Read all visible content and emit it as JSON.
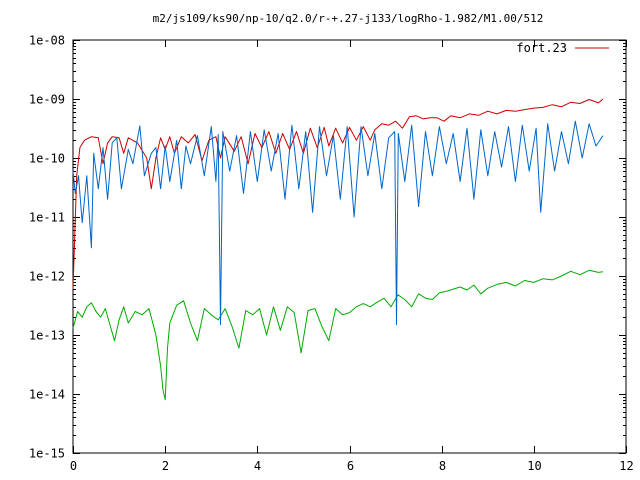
{
  "chart_data": {
    "type": "line",
    "title": "m2/js109/ks90/np-10/q2.0/r-+.27-j133/logRho-1.982/M1.00/512",
    "xlabel": "",
    "ylabel": "",
    "xlim": [
      0,
      12
    ],
    "ylim": [
      1e-15,
      1e-08
    ],
    "yscale": "log",
    "x_ticks": [
      0,
      2,
      4,
      6,
      8,
      10,
      12
    ],
    "x_tick_labels": [
      "0",
      "2",
      "4",
      "6",
      "8",
      "10",
      "12"
    ],
    "y_ticks": [
      1e-15,
      1e-14,
      1e-13,
      1e-12,
      1e-11,
      1e-10,
      1e-09,
      1e-08
    ],
    "y_tick_labels": [
      "1e-15",
      "1e-14",
      "1e-13",
      "1e-12",
      "1e-11",
      "1e-10",
      "1e-09",
      "1e-08"
    ],
    "grid": false,
    "legend_position": "top-right",
    "series": [
      {
        "name": "fort.23",
        "color": "#cc0000",
        "x": [
          0.0,
          0.08,
          0.15,
          0.25,
          0.4,
          0.55,
          0.65,
          0.75,
          0.85,
          1.0,
          1.1,
          1.2,
          1.4,
          1.6,
          1.7,
          1.8,
          1.9,
          2.0,
          2.1,
          2.2,
          2.35,
          2.5,
          2.65,
          2.8,
          2.95,
          3.1,
          3.2,
          3.3,
          3.5,
          3.65,
          3.8,
          3.95,
          4.1,
          4.25,
          4.4,
          4.55,
          4.7,
          4.85,
          5.0,
          5.15,
          5.3,
          5.45,
          5.55,
          5.7,
          5.85,
          6.0,
          6.15,
          6.3,
          6.45,
          6.55,
          6.7,
          6.85,
          7.0,
          7.15,
          7.3,
          7.45,
          7.6,
          7.75,
          7.9,
          8.05,
          8.2,
          8.4,
          8.6,
          8.8,
          9.0,
          9.2,
          9.4,
          9.6,
          9.8,
          10.0,
          10.2,
          10.4,
          10.6,
          10.8,
          11.0,
          11.2,
          11.4,
          11.5
        ],
        "y": [
          6e-13,
          5e-11,
          1.5e-10,
          2e-10,
          2.3e-10,
          2.2e-10,
          8e-11,
          1.8e-10,
          2.3e-10,
          2.2e-10,
          1.2e-10,
          2.2e-10,
          1.8e-10,
          1e-10,
          3e-11,
          1e-10,
          2.2e-10,
          1.4e-10,
          2.3e-10,
          1.2e-10,
          2.3e-10,
          1.8e-10,
          2.5e-10,
          9e-11,
          2e-10,
          2.3e-10,
          1e-10,
          2.3e-10,
          1.3e-10,
          2.3e-10,
          8e-11,
          2.6e-10,
          1.5e-10,
          2.8e-10,
          1.2e-10,
          2.6e-10,
          1.4e-10,
          2.8e-10,
          1.2e-10,
          3.2e-10,
          1.5e-10,
          3.3e-10,
          1.6e-10,
          3.2e-10,
          1.8e-10,
          3.3e-10,
          2e-10,
          3.4e-10,
          2e-10,
          3e-10,
          3.8e-10,
          3.6e-10,
          4.2e-10,
          3.2e-10,
          5e-10,
          5.2e-10,
          4.6e-10,
          4.8e-10,
          4.8e-10,
          4.2e-10,
          5.2e-10,
          4.8e-10,
          5.6e-10,
          5.3e-10,
          6.2e-10,
          5.6e-10,
          6.4e-10,
          6.2e-10,
          6.6e-10,
          7e-10,
          7.2e-10,
          8e-10,
          7.4e-10,
          8.8e-10,
          8.4e-10,
          9.8e-10,
          8.6e-10,
          1e-09
        ]
      },
      {
        "color": "#0066cc",
        "x": [
          0.0,
          0.05,
          0.12,
          0.2,
          0.3,
          0.4,
          0.45,
          0.55,
          0.65,
          0.75,
          0.85,
          0.95,
          1.05,
          1.2,
          1.3,
          1.45,
          1.55,
          1.7,
          1.8,
          1.9,
          2.0,
          2.1,
          2.25,
          2.35,
          2.45,
          2.55,
          2.7,
          2.85,
          3.0,
          3.1,
          3.15,
          3.2,
          3.25,
          3.4,
          3.55,
          3.7,
          3.85,
          4.0,
          4.15,
          4.3,
          4.45,
          4.6,
          4.75,
          4.9,
          5.05,
          5.2,
          5.35,
          5.5,
          5.65,
          5.8,
          5.95,
          6.1,
          6.25,
          6.4,
          6.55,
          6.7,
          6.85,
          6.98,
          7.02,
          7.06,
          7.2,
          7.35,
          7.5,
          7.65,
          7.8,
          7.95,
          8.1,
          8.25,
          8.4,
          8.55,
          8.7,
          8.85,
          9.0,
          9.15,
          9.3,
          9.45,
          9.6,
          9.75,
          9.9,
          10.05,
          10.15,
          10.3,
          10.45,
          10.6,
          10.75,
          10.9,
          11.05,
          11.2,
          11.35,
          11.5
        ],
        "y": [
          6e-11,
          2.5e-11,
          5e-11,
          8e-12,
          5e-11,
          3e-12,
          1.2e-10,
          3e-11,
          1.5e-10,
          2e-11,
          1.8e-10,
          2.2e-10,
          3e-11,
          1.4e-10,
          8e-11,
          3.5e-10,
          5e-11,
          1.2e-10,
          1.5e-10,
          3e-11,
          1.6e-10,
          4e-11,
          2e-10,
          3e-11,
          1.6e-10,
          8e-11,
          2.4e-10,
          5e-11,
          3.4e-10,
          4e-11,
          2.5e-10,
          1.5e-13,
          2.8e-10,
          6e-11,
          2.4e-10,
          2.5e-11,
          2.8e-10,
          4e-11,
          3e-10,
          6e-11,
          2.6e-10,
          2e-11,
          3.6e-10,
          3e-11,
          2.8e-10,
          1.2e-11,
          3.4e-10,
          5e-11,
          2.4e-10,
          2e-11,
          3.4e-10,
          1e-11,
          3.4e-10,
          5e-11,
          2.6e-10,
          3e-11,
          2.2e-10,
          2.8e-10,
          1.5e-13,
          2.6e-10,
          4e-11,
          3.6e-10,
          1.5e-11,
          2.8e-10,
          5e-11,
          3.4e-10,
          8e-11,
          2.6e-10,
          4e-11,
          3.2e-10,
          2e-11,
          3e-10,
          5e-11,
          2.8e-10,
          7e-11,
          3.4e-10,
          4e-11,
          3.6e-10,
          6e-11,
          3.2e-10,
          1.2e-11,
          3.8e-10,
          6e-11,
          2.8e-10,
          8e-11,
          4.2e-10,
          1e-10,
          3.8e-10,
          1.6e-10,
          2.4e-10
        ]
      },
      {
        "color": "#00aa00",
        "x": [
          0.0,
          0.1,
          0.2,
          0.3,
          0.4,
          0.5,
          0.6,
          0.7,
          0.8,
          0.9,
          1.0,
          1.1,
          1.2,
          1.35,
          1.5,
          1.65,
          1.8,
          1.9,
          1.95,
          2.0,
          2.05,
          2.1,
          2.25,
          2.4,
          2.55,
          2.7,
          2.85,
          3.0,
          3.15,
          3.3,
          3.45,
          3.6,
          3.75,
          3.9,
          4.05,
          4.2,
          4.35,
          4.5,
          4.65,
          4.8,
          4.95,
          5.1,
          5.25,
          5.4,
          5.55,
          5.7,
          5.85,
          6.0,
          6.15,
          6.3,
          6.45,
          6.6,
          6.75,
          6.9,
          7.05,
          7.2,
          7.35,
          7.5,
          7.65,
          7.8,
          7.95,
          8.1,
          8.25,
          8.4,
          8.55,
          8.7,
          8.85,
          9.0,
          9.2,
          9.4,
          9.6,
          9.8,
          10.0,
          10.2,
          10.4,
          10.6,
          10.8,
          11.0,
          11.2,
          11.4,
          11.5
        ],
        "y": [
          1.3e-13,
          2.5e-13,
          2e-13,
          3e-13,
          3.5e-13,
          2.5e-13,
          2e-13,
          2.8e-13,
          1.5e-13,
          8e-14,
          1.8e-13,
          3e-13,
          1.6e-13,
          2.5e-13,
          2.2e-13,
          2.8e-13,
          1e-13,
          3e-14,
          1.2e-14,
          8e-15,
          6e-14,
          1.6e-13,
          3.2e-13,
          3.8e-13,
          1.6e-13,
          8e-14,
          2.8e-13,
          2.2e-13,
          1.8e-13,
          2.8e-13,
          1.4e-13,
          6e-14,
          2.6e-13,
          2.2e-13,
          2.8e-13,
          1e-13,
          3e-13,
          1.2e-13,
          3e-13,
          2.4e-13,
          5e-14,
          2.6e-13,
          2.8e-13,
          1.4e-13,
          8e-14,
          2.8e-13,
          2.2e-13,
          2.4e-13,
          3e-13,
          3.4e-13,
          3e-13,
          3.6e-13,
          4.2e-13,
          3e-13,
          4.8e-13,
          4e-13,
          3e-13,
          5e-13,
          4.2e-13,
          4e-13,
          5.2e-13,
          5.5e-13,
          6e-13,
          6.5e-13,
          5.8e-13,
          7e-13,
          5e-13,
          6.2e-13,
          7.2e-13,
          7.8e-13,
          6.8e-13,
          8.4e-13,
          7.8e-13,
          9e-13,
          8.6e-13,
          1e-12,
          1.2e-12,
          1.05e-12,
          1.25e-12,
          1.15e-12,
          1.18e-12
        ]
      }
    ]
  }
}
